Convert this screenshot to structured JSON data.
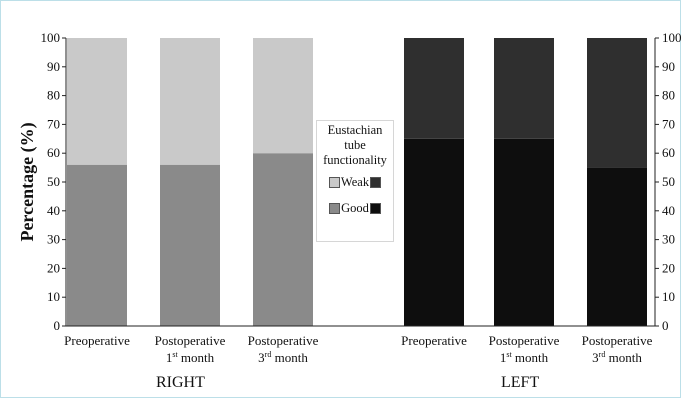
{
  "chart_data": {
    "type": "bar",
    "stacked": true,
    "ylabel": "Percentage (%)",
    "ylim": [
      0,
      100
    ],
    "yticks": [
      0,
      10,
      20,
      30,
      40,
      50,
      60,
      70,
      80,
      90,
      100
    ],
    "categories": [
      {
        "line1": "Preoperative",
        "line2": "",
        "sup": "",
        "line2_tail": "",
        "side": "RIGHT"
      },
      {
        "line1": "Postoperative",
        "line2": "1",
        "sup": "st",
        "line2_tail": " month",
        "side": "RIGHT"
      },
      {
        "line1": "Postoperative",
        "line2": "3",
        "sup": "rd",
        "line2_tail": " month",
        "side": "RIGHT"
      },
      {
        "line1": "Preoperative",
        "line2": "",
        "sup": "",
        "line2_tail": "",
        "side": "LEFT"
      },
      {
        "line1": "Postoperative",
        "line2": "1",
        "sup": "st",
        "line2_tail": " month",
        "side": "LEFT"
      },
      {
        "line1": "Postoperative",
        "line2": "3",
        "sup": "rd",
        "line2_tail": " month",
        "side": "LEFT"
      }
    ],
    "series": [
      {
        "name": "Good",
        "values": [
          56,
          56,
          60,
          65,
          65,
          55
        ]
      },
      {
        "name": "Weak",
        "values": [
          44,
          44,
          40,
          35,
          35,
          45
        ]
      }
    ],
    "colors": {
      "right_good": "#8a8a8a",
      "right_weak": "#c9c9c9",
      "left_good": "#0e0e0e",
      "left_weak": "#2f2f2f"
    },
    "groups": [
      "RIGHT",
      "LEFT"
    ],
    "legend": {
      "title": [
        "Eustachian",
        "tube",
        "functionality"
      ],
      "weak_label": "Weak",
      "good_label": "Good"
    },
    "grid": false,
    "secondary_y_axis": true
  }
}
